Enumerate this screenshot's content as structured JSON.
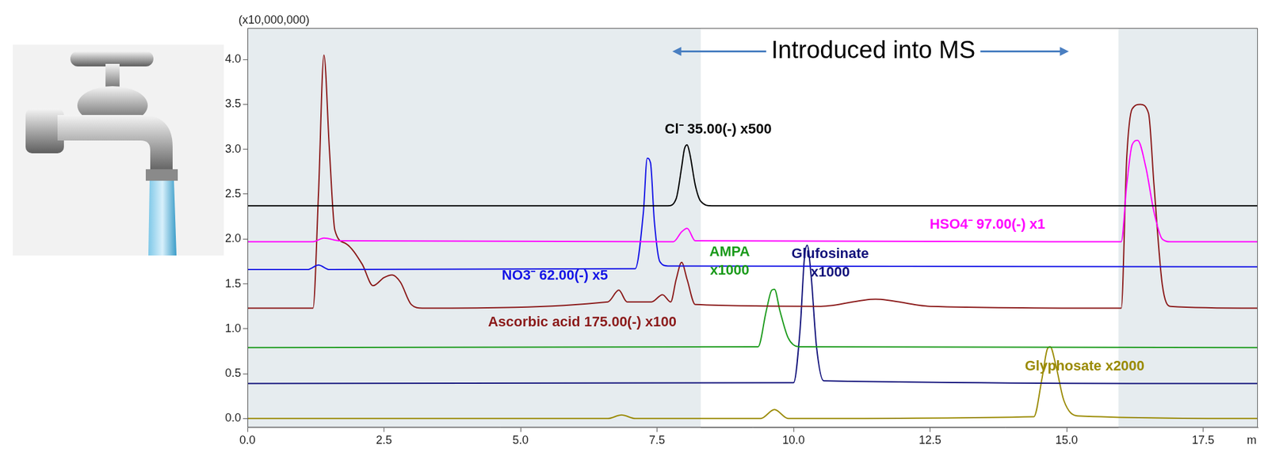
{
  "chart_data": {
    "type": "line",
    "xlabel": "m",
    "axis_multiplier": "(x10,000,000)",
    "xlim": [
      0,
      18.5
    ],
    "ylim": [
      -0.1,
      4.35
    ],
    "xticks": [
      {
        "value": 0,
        "label": "0.0"
      },
      {
        "value": 2.5,
        "label": "2.5"
      },
      {
        "value": 5,
        "label": "5.0"
      },
      {
        "value": 7.5,
        "label": "7.5"
      },
      {
        "value": 10,
        "label": "10.0"
      },
      {
        "value": 12.5,
        "label": "12.5"
      },
      {
        "value": 15,
        "label": "15.0"
      },
      {
        "value": 17.5,
        "label": "17.5"
      }
    ],
    "yticks": [
      {
        "value": 0,
        "label": "0.0"
      },
      {
        "value": 0.5,
        "label": "0.5"
      },
      {
        "value": 1,
        "label": "1.0"
      },
      {
        "value": 1.5,
        "label": "1.5"
      },
      {
        "value": 2,
        "label": "2.0"
      },
      {
        "value": 2.5,
        "label": "2.5"
      },
      {
        "value": 3,
        "label": "3.0"
      },
      {
        "value": 3.5,
        "label": "3.5"
      },
      {
        "value": 4,
        "label": "4.0"
      }
    ],
    "grid": false,
    "shaded_x_ranges": [
      [
        0,
        8.3
      ],
      [
        15.95,
        18.5
      ]
    ],
    "series": [
      {
        "name": "Cl⁻ 35.00(-) x500",
        "color": "#000000",
        "x": [
          0,
          7.7,
          7.85,
          7.95,
          8.0,
          8.05,
          8.1,
          8.2,
          8.3,
          8.5,
          18.5
        ],
        "values": [
          2.37,
          2.37,
          2.45,
          2.8,
          3.0,
          3.05,
          2.95,
          2.6,
          2.42,
          2.37,
          2.37
        ]
      },
      {
        "name": "HSO4⁻ 97.00(-) x1",
        "color": "#ff00ff",
        "x": [
          0,
          1.2,
          1.4,
          1.7,
          7.8,
          7.95,
          8.05,
          8.2,
          16.0,
          16.1,
          16.2,
          16.3,
          16.45,
          16.6,
          16.75,
          16.9,
          18.5
        ],
        "values": [
          1.97,
          1.97,
          2.01,
          1.98,
          1.97,
          2.08,
          2.12,
          1.98,
          1.97,
          2.6,
          3.05,
          3.1,
          2.8,
          2.3,
          2.0,
          1.97,
          1.97
        ]
      },
      {
        "name": "NO3⁻ 62.00(-) x5",
        "color": "#1414e6",
        "x": [
          0,
          1.1,
          1.3,
          1.5,
          7.1,
          7.25,
          7.32,
          7.38,
          7.45,
          7.55,
          7.7,
          18.5
        ],
        "values": [
          1.66,
          1.66,
          1.71,
          1.66,
          1.67,
          2.3,
          2.9,
          2.85,
          2.2,
          1.75,
          1.7,
          1.69
        ]
      },
      {
        "name": "Ascorbic acid 175.00(-) x100",
        "color": "#8b1a1a",
        "x": [
          0,
          1.2,
          1.3,
          1.4,
          1.5,
          1.6,
          1.8,
          2.1,
          2.3,
          2.5,
          2.65,
          2.8,
          3.0,
          3.2,
          6.6,
          6.8,
          6.95,
          7.4,
          7.6,
          7.75,
          7.85,
          7.95,
          8.05,
          8.2,
          10.5,
          11.5,
          12.5,
          16.0,
          16.1,
          16.2,
          16.35,
          16.5,
          16.6,
          16.75,
          16.9,
          18.5
        ],
        "values": [
          1.23,
          1.23,
          2.5,
          4.05,
          3.0,
          2.1,
          1.95,
          1.72,
          1.48,
          1.57,
          1.6,
          1.52,
          1.27,
          1.23,
          1.3,
          1.43,
          1.3,
          1.3,
          1.38,
          1.3,
          1.55,
          1.74,
          1.55,
          1.27,
          1.25,
          1.33,
          1.25,
          1.23,
          2.9,
          3.45,
          3.5,
          3.4,
          2.6,
          1.5,
          1.25,
          1.23
        ]
      },
      {
        "name": "AMPA x1000",
        "color": "#1a9a1a",
        "x": [
          0,
          9.35,
          9.5,
          9.6,
          9.65,
          9.75,
          9.9,
          10.1,
          18.5
        ],
        "values": [
          0.79,
          0.8,
          1.2,
          1.43,
          1.44,
          1.2,
          0.9,
          0.8,
          0.79
        ]
      },
      {
        "name": "Glufosinate x1000",
        "color": "#10107a",
        "x": [
          0,
          10.0,
          10.12,
          10.2,
          10.25,
          10.32,
          10.42,
          10.55,
          18.5
        ],
        "values": [
          0.39,
          0.4,
          1.0,
          1.8,
          1.93,
          1.6,
          0.8,
          0.42,
          0.39
        ]
      },
      {
        "name": "Glyphosate x2000",
        "color": "#9a8a00",
        "x": [
          0,
          6.6,
          6.85,
          7.1,
          9.4,
          9.65,
          9.9,
          14.4,
          14.55,
          14.65,
          14.7,
          14.8,
          14.95,
          15.2,
          18.5
        ],
        "values": [
          0,
          0,
          0.04,
          0,
          0,
          0.1,
          0,
          0.02,
          0.45,
          0.78,
          0.8,
          0.6,
          0.2,
          0.03,
          0
        ]
      }
    ],
    "annotations": [
      {
        "lines": [
          "Cl⁻ 35.00(-) x500"
        ],
        "x": 8.62,
        "y": 3.22,
        "color": "#000000"
      },
      {
        "lines": [
          "HSO4⁻ 97.00(-) x1"
        ],
        "x": 13.55,
        "y": 2.16,
        "color": "#ff00ff"
      },
      {
        "lines": [
          "NO3⁻ 62.00(-) x5"
        ],
        "x": 5.63,
        "y": 1.59,
        "color": "#1414e6"
      },
      {
        "lines": [
          "Ascorbic acid 175.00(-) x100"
        ],
        "x": 6.13,
        "y": 1.07,
        "color": "#8b1a1a"
      },
      {
        "lines": [
          "AMPA",
          "x1000"
        ],
        "x": 8.83,
        "y": 1.75,
        "color": "#1a9a1a"
      },
      {
        "lines": [
          "Glufosinate",
          "x1000"
        ],
        "x": 10.67,
        "y": 1.73,
        "color": "#10107a"
      },
      {
        "lines": [
          "Glyphosate x2000"
        ],
        "x": 15.33,
        "y": 0.58,
        "color": "#9a8a00"
      },
      {
        "lines": [
          "Introduced into MS"
        ],
        "x": 11.46,
        "y": 4.09,
        "color": "#000000",
        "arrow_from": 7.78,
        "arrow_to": 15.04
      }
    ]
  }
}
